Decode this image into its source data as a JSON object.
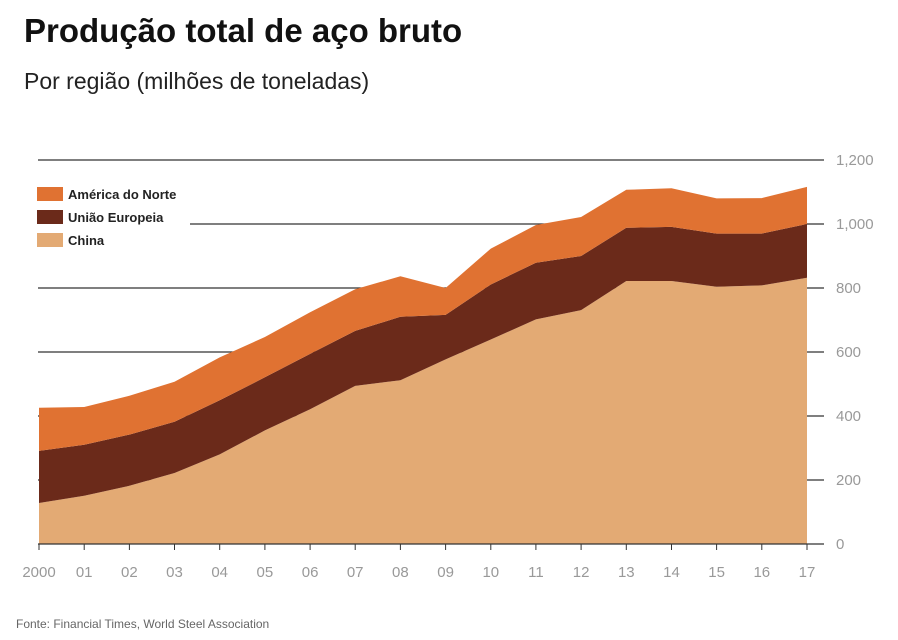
{
  "title": "Produção total de aço bruto",
  "subtitle": "Por região (milhões de toneladas)",
  "source": "Fonte: Financial Times, World Steel Association",
  "colors": {
    "america_do_norte": "#e07232",
    "uniao_europeia": "#6b2a1a",
    "china": "#e3aa74",
    "gridline": "#333333",
    "tick_text": "#999999"
  },
  "chart_data": {
    "type": "area",
    "stacked": true,
    "x": [
      "2000",
      "01",
      "02",
      "03",
      "04",
      "05",
      "06",
      "07",
      "08",
      "09",
      "10",
      "11",
      "12",
      "13",
      "14",
      "15",
      "16",
      "17"
    ],
    "series": [
      {
        "name": "China",
        "values": [
          128,
          151,
          182,
          222,
          280,
          355,
          421,
          494,
          512,
          577,
          639,
          702,
          731,
          822,
          822,
          804,
          808,
          832
        ]
      },
      {
        "name": "União Europeia",
        "values": [
          163,
          159,
          160,
          160,
          169,
          166,
          173,
          172,
          198,
          139,
          172,
          177,
          169,
          166,
          169,
          166,
          162,
          168
        ]
      },
      {
        "name": "América do Norte",
        "values": [
          135,
          118,
          121,
          125,
          134,
          126,
          130,
          130,
          127,
          84,
          112,
          118,
          122,
          119,
          121,
          110,
          111,
          116
        ]
      }
    ],
    "ylim": [
      0,
      1200
    ],
    "yticks": [
      "0",
      "200",
      "400",
      "600",
      "800",
      "1,000",
      "1,200"
    ],
    "ytick_values": [
      0,
      200,
      400,
      600,
      800,
      1000,
      1200
    ],
    "grid": true,
    "legend": "top-left",
    "xlabel": "",
    "ylabel": ""
  }
}
